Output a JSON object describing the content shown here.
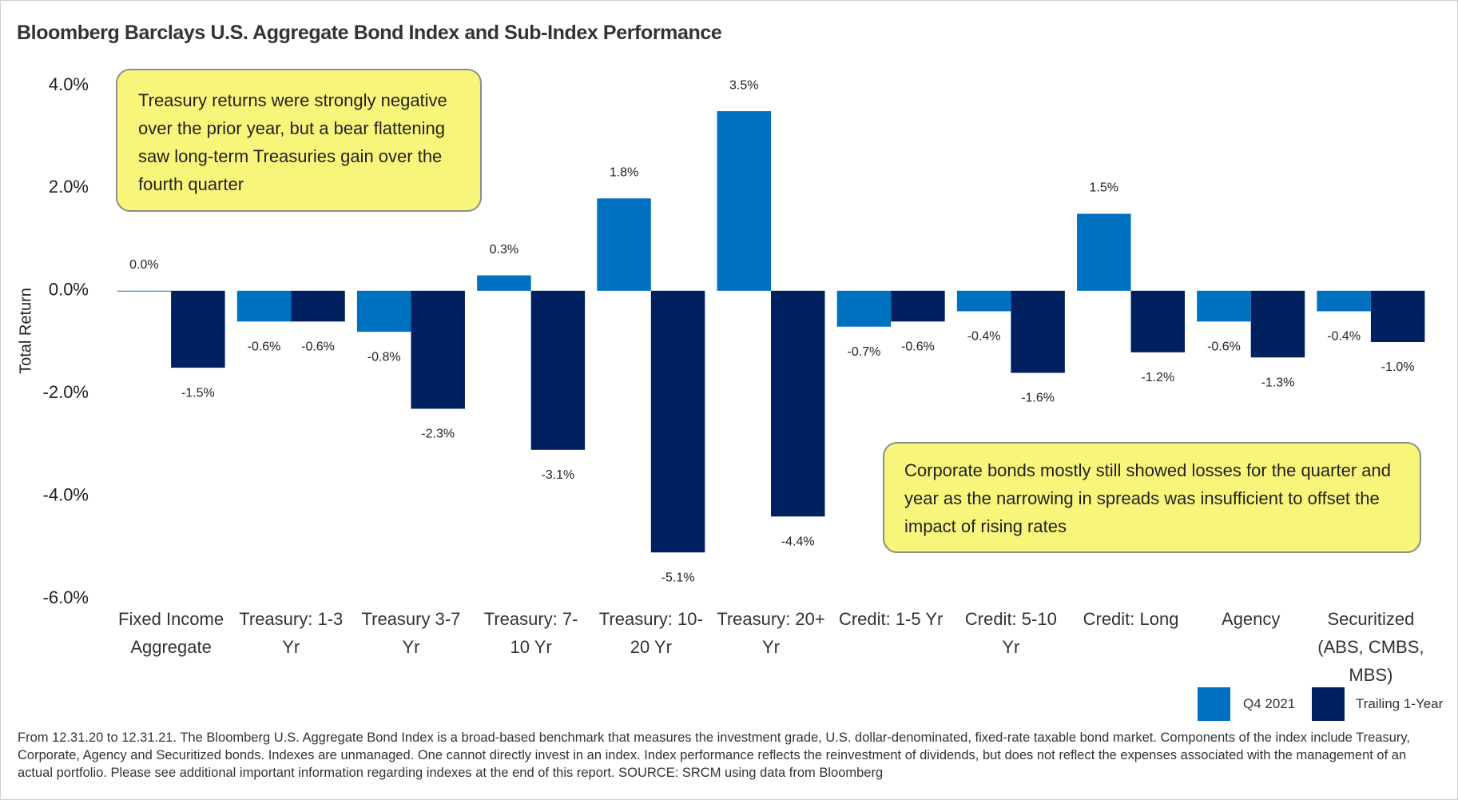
{
  "chart_data": {
    "type": "bar",
    "title": "Bloomberg Barclays U.S. Aggregate Bond Index and Sub-Index Performance",
    "y_label": "Total Return",
    "categories": [
      "Fixed Income Aggregate",
      "Treasury: 1-3 Yr",
      "Treasury 3-7 Yr",
      "Treasury: 7-10 Yr",
      "Treasury: 10-20 Yr",
      "Treasury: 20+ Yr",
      "Credit: 1-5 Yr",
      "Credit: 5-10 Yr",
      "Credit: Long",
      "Agency",
      "Securitized (ABS, CMBS, MBS)"
    ],
    "series": [
      {
        "name": "Q4 2021",
        "color": "#0070c0",
        "values": [
          0.0,
          -0.6,
          -0.8,
          0.3,
          1.8,
          3.5,
          -0.7,
          -0.4,
          1.5,
          -0.6,
          -0.4
        ],
        "value_labels": [
          "0.0%",
          "-0.6%",
          "-0.8%",
          "0.3%",
          "1.8%",
          "3.5%",
          "-0.7%",
          "-0.4%",
          "1.5%",
          "-0.6%",
          "-0.4%"
        ]
      },
      {
        "name": "Trailing 1-Year",
        "color": "#002060",
        "values": [
          -1.5,
          -0.6,
          -2.3,
          -3.1,
          -5.1,
          -4.4,
          -0.6,
          -1.6,
          -1.2,
          -1.3,
          -1.0
        ],
        "value_labels": [
          "-1.5%",
          "-0.6%",
          "-2.3%",
          "-3.1%",
          "-5.1%",
          "-4.4%",
          "-0.6%",
          "-1.6%",
          "-1.2%",
          "-1.3%",
          "-1.0%"
        ]
      }
    ],
    "ylim": [
      -6,
      4
    ],
    "yticks": [
      {
        "value": -6,
        "label": "-6.0%"
      },
      {
        "value": -4,
        "label": "-4.0%"
      },
      {
        "value": -2,
        "label": "-2.0%"
      },
      {
        "value": 0,
        "label": "0.0%"
      },
      {
        "value": 2,
        "label": "2.0%"
      },
      {
        "value": 4,
        "label": "4.0%"
      }
    ],
    "grid": false,
    "legend": "bottom-right",
    "annotations": [
      "Treasury returns were strongly negative over the prior year, but a bear flattening saw long-term Treasuries gain over the fourth quarter",
      "Corporate bonds mostly still showed losses for the quarter and year as the narrowing in spreads was insufficient to offset the impact of rising rates"
    ],
    "footnote": "From 12.31.20 to 12.31.21. The Bloomberg U.S. Aggregate Bond Index is a broad-based benchmark that measures the investment grade, U.S. dollar-denominated, fixed-rate taxable bond market. Components of the index include Treasury, Corporate, Agency and Securitized bonds. Indexes are unmanaged. One cannot directly invest in an index. Index performance reflects the reinvestment of dividends, but does not reflect the expenses associated with the management of an actual portfolio. Please see additional important information regarding indexes at the end of this report. SOURCE: SRCM using data from Bloomberg"
  }
}
